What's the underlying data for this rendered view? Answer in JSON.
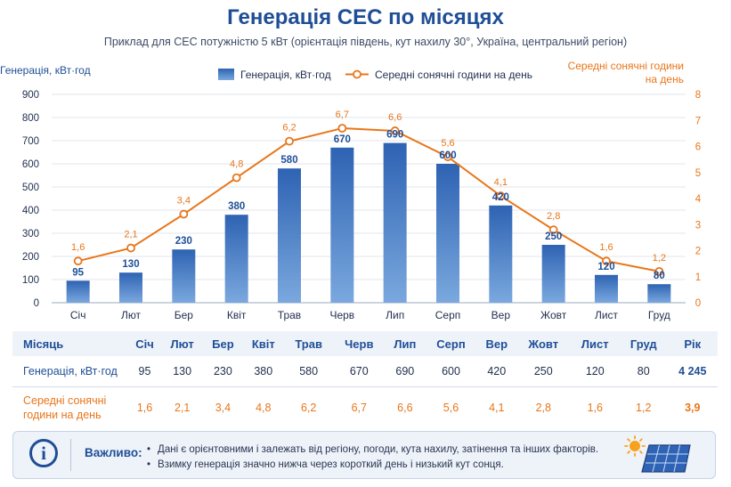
{
  "title": "Генерація СЕС по місяцях",
  "subtitle": "Приклад для СЕС потужністю 5 кВт (орієнтація південь, кут нахилу 30°, Україна, центральний регіон)",
  "chart_data": {
    "type": "bar+line",
    "categories": [
      "Січ",
      "Лют",
      "Бер",
      "Квіт",
      "Трав",
      "Черв",
      "Лип",
      "Серп",
      "Вер",
      "Жовт",
      "Лист",
      "Груд"
    ],
    "series": [
      {
        "name": "Генерація, кВт·год",
        "type": "bar",
        "axis": "left",
        "values": [
          95,
          130,
          230,
          380,
          580,
          670,
          690,
          600,
          420,
          250,
          120,
          80
        ],
        "labels": [
          "95",
          "130",
          "230",
          "380",
          "580",
          "670",
          "690",
          "600",
          "420",
          "250",
          "120",
          "80"
        ]
      },
      {
        "name": "Середні сонячні години на день",
        "type": "line",
        "axis": "right",
        "values": [
          1.6,
          2.1,
          3.4,
          4.8,
          6.2,
          6.7,
          6.6,
          5.6,
          4.1,
          2.8,
          1.6,
          1.2
        ],
        "labels": [
          "1,6",
          "2,1",
          "3,4",
          "4,8",
          "6,2",
          "6,7",
          "6,6",
          "5,6",
          "4,1",
          "2,8",
          "1,6",
          "1,2"
        ]
      }
    ],
    "ylabel_left": "Генерація, кВт·год",
    "ylabel_right_lines": [
      "Середні сонячні години",
      "на день"
    ],
    "ylim_left": [
      0,
      900
    ],
    "yticks_left": [
      0,
      100,
      200,
      300,
      400,
      500,
      600,
      700,
      800,
      900
    ],
    "ylim_right": [
      0,
      8
    ],
    "yticks_right": [
      0,
      1,
      2,
      3,
      4,
      5,
      6,
      7,
      8
    ],
    "grid": true,
    "legend_position": "top-center",
    "colors": {
      "bar": "#3b72c0",
      "bar_light": "#78a6de",
      "line": "#e8761a"
    }
  },
  "table": {
    "header": {
      "label": "Місяць",
      "months": [
        "Січ",
        "Лют",
        "Бер",
        "Квіт",
        "Трав",
        "Черв",
        "Лип",
        "Серп",
        "Вер",
        "Жовт",
        "Лист",
        "Груд"
      ],
      "total": "Рік"
    },
    "generation": {
      "label": "Генерація, кВт·год",
      "values": [
        "95",
        "130",
        "230",
        "380",
        "580",
        "670",
        "690",
        "600",
        "420",
        "250",
        "120",
        "80"
      ],
      "total": "4 245"
    },
    "sun_hours": {
      "label_lines": [
        "Середні сонячні",
        "години на день"
      ],
      "values": [
        "1,6",
        "2,1",
        "3,4",
        "4,8",
        "6,2",
        "6,7",
        "6,6",
        "5,6",
        "4,1",
        "2,8",
        "1,6",
        "1,2"
      ],
      "total": "3,9"
    }
  },
  "note": {
    "label": "Важливо:",
    "items": [
      "Дані є орієнтовними і залежать від регіону, погоди, кута нахилу, затінення та інших факторів.",
      "Взимку генерація значно нижча через короткий день і низький кут сонця."
    ],
    "icons": [
      "info-icon",
      "solar-panel-icon"
    ]
  }
}
